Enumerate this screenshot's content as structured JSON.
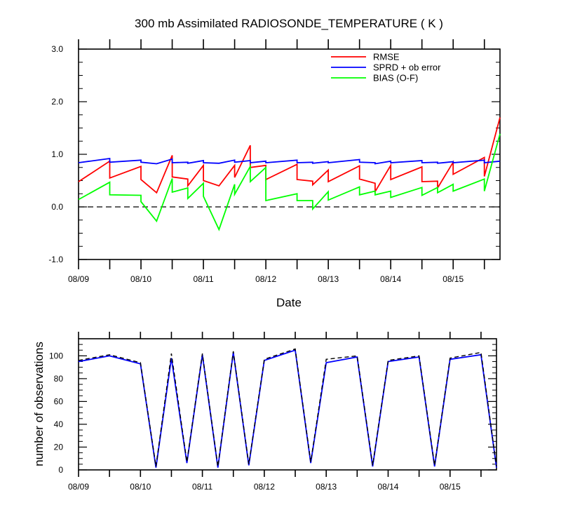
{
  "chart_data": [
    {
      "type": "line",
      "title": "300 mb Assimilated RADIOSONDE_TEMPERATURE ( K )",
      "xlabel": "Date",
      "ylabel": "",
      "ylim": [
        -1.0,
        3.0
      ],
      "yticks": [
        "-1.0",
        "0.0",
        "1.0",
        "2.0",
        "3.0"
      ],
      "yticks_values": [
        -1.0,
        0.0,
        1.0,
        2.0,
        3.0
      ],
      "xticks": [
        "08/09",
        "08/10",
        "08/11",
        "08/12",
        "08/13",
        "08/14",
        "08/15"
      ],
      "legend_position": "top-right",
      "zero_line": "dashed",
      "series": [
        {
          "name": "RMSE",
          "color": "#ff0000",
          "points": [
            [
              "08/09 00Z",
              0.48
            ],
            [
              "08/09 12Z",
              0.87
            ],
            [
              "08/09 12Z",
              0.55
            ],
            [
              "08/10 00Z",
              0.77
            ],
            [
              "08/10 00Z",
              0.52
            ],
            [
              "08/10 06Z",
              0.27
            ],
            [
              "08/10 12Z",
              0.98
            ],
            [
              "08/10 12Z",
              0.57
            ],
            [
              "08/10 18Z",
              0.53
            ],
            [
              "08/10 18Z",
              0.4
            ],
            [
              "08/11 00Z",
              0.79
            ],
            [
              "08/11 00Z",
              0.5
            ],
            [
              "08/11 06Z",
              0.4
            ],
            [
              "08/11 12Z",
              0.79
            ],
            [
              "08/11 12Z",
              0.56
            ],
            [
              "08/11 18Z",
              1.17
            ],
            [
              "08/11 18Z",
              0.75
            ],
            [
              "08/12 00Z",
              0.79
            ],
            [
              "08/12 00Z",
              0.52
            ],
            [
              "08/12 12Z",
              0.81
            ],
            [
              "08/12 12Z",
              0.52
            ],
            [
              "08/12 18Z",
              0.49
            ],
            [
              "08/12 18Z",
              0.42
            ],
            [
              "08/13 00Z",
              0.7
            ],
            [
              "08/13 00Z",
              0.48
            ],
            [
              "08/13 12Z",
              0.78
            ],
            [
              "08/13 12Z",
              0.53
            ],
            [
              "08/13 18Z",
              0.45
            ],
            [
              "08/13 18Z",
              0.29
            ],
            [
              "08/14 00Z",
              0.79
            ],
            [
              "08/14 00Z",
              0.52
            ],
            [
              "08/14 12Z",
              0.76
            ],
            [
              "08/14 12Z",
              0.48
            ],
            [
              "08/14 18Z",
              0.49
            ],
            [
              "08/14 18Z",
              0.36
            ],
            [
              "08/15 00Z",
              0.85
            ],
            [
              "08/15 00Z",
              0.62
            ],
            [
              "08/15 12Z",
              0.94
            ],
            [
              "08/15 12Z",
              0.58
            ],
            [
              "08/15 18Z",
              1.7
            ]
          ]
        },
        {
          "name": "SPRD + ob error",
          "color": "#0000ff",
          "points": [
            [
              "08/09 00Z",
              0.84
            ],
            [
              "08/09 12Z",
              0.92
            ],
            [
              "08/09 12Z",
              0.85
            ],
            [
              "08/10 00Z",
              0.89
            ],
            [
              "08/10 00Z",
              0.85
            ],
            [
              "08/10 06Z",
              0.82
            ],
            [
              "08/10 12Z",
              0.91
            ],
            [
              "08/10 12Z",
              0.84
            ],
            [
              "08/10 18Z",
              0.85
            ],
            [
              "08/10 18Z",
              0.83
            ],
            [
              "08/11 00Z",
              0.88
            ],
            [
              "08/11 00Z",
              0.84
            ],
            [
              "08/11 06Z",
              0.83
            ],
            [
              "08/11 12Z",
              0.89
            ],
            [
              "08/11 12Z",
              0.85
            ],
            [
              "08/11 18Z",
              0.88
            ],
            [
              "08/11 18Z",
              0.84
            ],
            [
              "08/12 00Z",
              0.87
            ],
            [
              "08/12 00Z",
              0.84
            ],
            [
              "08/12 12Z",
              0.89
            ],
            [
              "08/12 12Z",
              0.84
            ],
            [
              "08/12 18Z",
              0.85
            ],
            [
              "08/12 18Z",
              0.83
            ],
            [
              "08/13 00Z",
              0.86
            ],
            [
              "08/13 00Z",
              0.84
            ],
            [
              "08/13 12Z",
              0.9
            ],
            [
              "08/13 12Z",
              0.85
            ],
            [
              "08/13 18Z",
              0.84
            ],
            [
              "08/13 18Z",
              0.82
            ],
            [
              "08/14 00Z",
              0.87
            ],
            [
              "08/14 00Z",
              0.84
            ],
            [
              "08/14 12Z",
              0.88
            ],
            [
              "08/14 12Z",
              0.84
            ],
            [
              "08/14 18Z",
              0.85
            ],
            [
              "08/14 18Z",
              0.83
            ],
            [
              "08/15 00Z",
              0.86
            ],
            [
              "08/15 00Z",
              0.84
            ],
            [
              "08/15 12Z",
              0.89
            ],
            [
              "08/15 12Z",
              0.84
            ],
            [
              "08/15 18Z",
              0.87
            ]
          ]
        },
        {
          "name": "BIAS (O-F)",
          "color": "#00ff00",
          "points": [
            [
              "08/09 00Z",
              0.14
            ],
            [
              "08/09 12Z",
              0.47
            ],
            [
              "08/09 12Z",
              0.23
            ],
            [
              "08/10 00Z",
              0.22
            ],
            [
              "08/10 00Z",
              0.1
            ],
            [
              "08/10 06Z",
              -0.27
            ],
            [
              "08/10 12Z",
              0.54
            ],
            [
              "08/10 12Z",
              0.28
            ],
            [
              "08/10 18Z",
              0.36
            ],
            [
              "08/10 18Z",
              0.16
            ],
            [
              "08/11 00Z",
              0.45
            ],
            [
              "08/11 00Z",
              0.2
            ],
            [
              "08/11 06Z",
              -0.43
            ],
            [
              "08/11 12Z",
              0.43
            ],
            [
              "08/11 12Z",
              0.24
            ],
            [
              "08/11 18Z",
              0.77
            ],
            [
              "08/11 18Z",
              0.48
            ],
            [
              "08/12 00Z",
              0.75
            ],
            [
              "08/12 00Z",
              0.12
            ],
            [
              "08/12 12Z",
              0.25
            ],
            [
              "08/12 12Z",
              0.12
            ],
            [
              "08/12 18Z",
              0.12
            ],
            [
              "08/12 18Z",
              -0.04
            ],
            [
              "08/13 00Z",
              0.29
            ],
            [
              "08/13 00Z",
              0.13
            ],
            [
              "08/13 12Z",
              0.38
            ],
            [
              "08/13 12Z",
              0.23
            ],
            [
              "08/13 18Z",
              0.3
            ],
            [
              "08/13 18Z",
              0.23
            ],
            [
              "08/14 00Z",
              0.3
            ],
            [
              "08/14 00Z",
              0.18
            ],
            [
              "08/14 12Z",
              0.37
            ],
            [
              "08/14 12Z",
              0.22
            ],
            [
              "08/14 18Z",
              0.37
            ],
            [
              "08/14 18Z",
              0.27
            ],
            [
              "08/15 00Z",
              0.43
            ],
            [
              "08/15 00Z",
              0.3
            ],
            [
              "08/15 12Z",
              0.53
            ],
            [
              "08/15 12Z",
              0.3
            ],
            [
              "08/15 18Z",
              1.39
            ]
          ]
        }
      ]
    },
    {
      "type": "line",
      "title": "",
      "xlabel": "",
      "ylabel": "number of observations",
      "ylim": [
        0,
        115
      ],
      "yticks": [
        "0",
        "20",
        "40",
        "60",
        "80",
        "100"
      ],
      "yticks_values": [
        0,
        20,
        40,
        60,
        80,
        100
      ],
      "xticks": [
        "08/09",
        "08/10",
        "08/11",
        "08/12",
        "08/13",
        "08/14",
        "08/15"
      ],
      "series": [
        {
          "color": "#0000ff",
          "style": "solid",
          "points": [
            [
              "08/09 00Z",
              95
            ],
            [
              "08/09 12Z",
              100
            ],
            [
              "08/10 00Z",
              93
            ],
            [
              "08/10 06Z",
              2
            ],
            [
              "08/10 12Z",
              98
            ],
            [
              "08/10 18Z",
              6
            ],
            [
              "08/11 00Z",
              101
            ],
            [
              "08/11 06Z",
              2
            ],
            [
              "08/11 12Z",
              103
            ],
            [
              "08/11 18Z",
              4
            ],
            [
              "08/12 00Z",
              96
            ],
            [
              "08/12 12Z",
              105
            ],
            [
              "08/12 18Z",
              6
            ],
            [
              "08/13 00Z",
              94
            ],
            [
              "08/13 12Z",
              99
            ],
            [
              "08/13 18Z",
              3
            ],
            [
              "08/14 00Z",
              95
            ],
            [
              "08/14 12Z",
              99
            ],
            [
              "08/14 18Z",
              3
            ],
            [
              "08/15 00Z",
              97
            ],
            [
              "08/15 12Z",
              101
            ],
            [
              "08/15 18Z",
              2
            ]
          ]
        },
        {
          "color": "#000000",
          "style": "dashed",
          "points": [
            [
              "08/09 00Z",
              96
            ],
            [
              "08/09 12Z",
              101
            ],
            [
              "08/10 00Z",
              94
            ],
            [
              "08/10 06Z",
              3
            ],
            [
              "08/10 12Z",
              102
            ],
            [
              "08/10 18Z",
              7
            ],
            [
              "08/11 00Z",
              102
            ],
            [
              "08/11 06Z",
              3
            ],
            [
              "08/11 12Z",
              104
            ],
            [
              "08/11 18Z",
              5
            ],
            [
              "08/12 00Z",
              97
            ],
            [
              "08/12 12Z",
              106
            ],
            [
              "08/12 18Z",
              7
            ],
            [
              "08/13 00Z",
              97
            ],
            [
              "08/13 12Z",
              100
            ],
            [
              "08/13 18Z",
              4
            ],
            [
              "08/14 00Z",
              96
            ],
            [
              "08/14 12Z",
              100
            ],
            [
              "08/14 18Z",
              4
            ],
            [
              "08/15 00Z",
              98
            ],
            [
              "08/15 12Z",
              103
            ],
            [
              "08/15 18Z",
              3
            ]
          ]
        }
      ]
    }
  ]
}
